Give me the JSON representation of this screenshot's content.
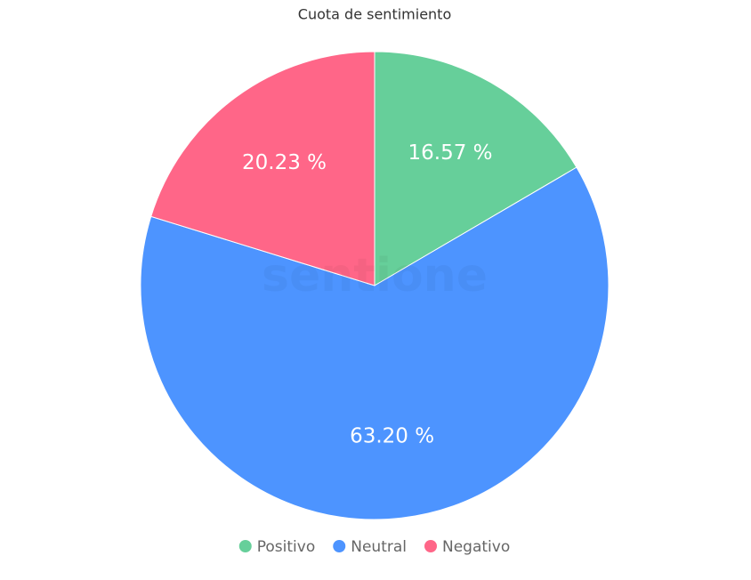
{
  "chart_data": {
    "type": "pie",
    "title": "Cuota de sentimiento",
    "categories": [
      "Positivo",
      "Neutral",
      "Negativo"
    ],
    "values": [
      16.57,
      63.2,
      20.23
    ],
    "value_labels": [
      "16.57 %",
      "63.20 %",
      "20.23 %"
    ],
    "colors": [
      "#66cf9a",
      "#4d94ff",
      "#ff6688"
    ],
    "watermark": "sentione",
    "legend": "bottom"
  }
}
